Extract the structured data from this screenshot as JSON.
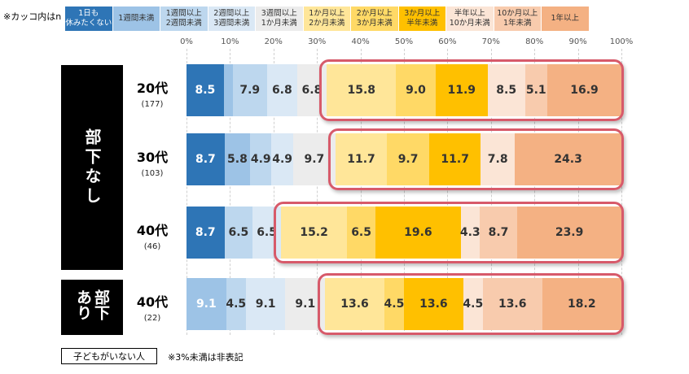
{
  "note_top": "※カッコ内はn",
  "footer": {
    "box_label": "子どもがいない人",
    "note": "※3%未満は非表記"
  },
  "chart_data": {
    "type": "bar",
    "orientation": "horizontal",
    "stacked": "percent",
    "xlim": [
      0,
      100
    ],
    "x_ticks": [
      "0%",
      "10%",
      "20%",
      "30%",
      "40%",
      "50%",
      "60%",
      "70%",
      "80%",
      "90%",
      "100%"
    ],
    "categories": [
      "1日も\n休みたくない",
      "1週間未満",
      "1週間以上\n2週間未満",
      "2週間以上\n3週間未満",
      "3週間以上\n1か月未満",
      "1か月以上\n2か月未満",
      "2か月以上\n3か月未満",
      "3か月以上\n半年未満",
      "半年以上\n10か月未満",
      "10か月以上\n1年未満",
      "1年以上"
    ],
    "colors": [
      "#2e75b6",
      "#9dc3e6",
      "#bdd7ee",
      "#dae8f5",
      "#ececec",
      "#ffe699",
      "#ffd966",
      "#ffc000",
      "#fbe5d6",
      "#f8cbad",
      "#f4b183"
    ],
    "groups": [
      {
        "label": "部下なし",
        "rows": [
          0,
          1,
          2
        ]
      },
      {
        "label": "部下あり",
        "rows": [
          3
        ]
      }
    ],
    "rows": [
      {
        "age": "20代",
        "n": "(177)",
        "values": [
          8.5,
          2.0,
          7.9,
          6.8,
          6.8,
          15.8,
          9.0,
          11.9,
          8.5,
          5.1,
          16.9
        ],
        "labels": [
          "8.5",
          "",
          "7.9",
          "6.8",
          "6.8",
          "15.8",
          "9.0",
          "11.9",
          "8.5",
          "5.1",
          "16.9"
        ]
      },
      {
        "age": "30代",
        "n": "(103)",
        "values": [
          8.7,
          5.8,
          4.9,
          4.9,
          9.7,
          11.7,
          9.7,
          11.7,
          7.8,
          0,
          24.3
        ],
        "labels": [
          "8.7",
          "5.8",
          "4.9",
          "4.9",
          "9.7",
          "11.7",
          "9.7",
          "11.7",
          "7.8",
          "",
          "24.3"
        ]
      },
      {
        "age": "40代",
        "n": "(46)",
        "values": [
          8.7,
          0,
          6.5,
          6.5,
          0,
          15.2,
          6.5,
          19.6,
          4.3,
          8.7,
          23.9
        ],
        "labels": [
          "8.7",
          "",
          "6.5",
          "6.5",
          "",
          "15.2",
          "6.5",
          "19.6",
          "4.3",
          "8.7",
          "23.9"
        ]
      },
      {
        "age": "40代",
        "n": "(22)",
        "values": [
          0,
          9.1,
          4.5,
          9.1,
          9.1,
          13.6,
          4.5,
          13.6,
          4.5,
          13.6,
          18.2
        ],
        "labels": [
          "",
          "9.1",
          "4.5",
          "9.1",
          "9.1",
          "13.6",
          "4.5",
          "13.6",
          "4.5",
          "13.6",
          "18.2"
        ]
      }
    ],
    "highlight": "1か月以上 (Σ segments 5–10)"
  }
}
